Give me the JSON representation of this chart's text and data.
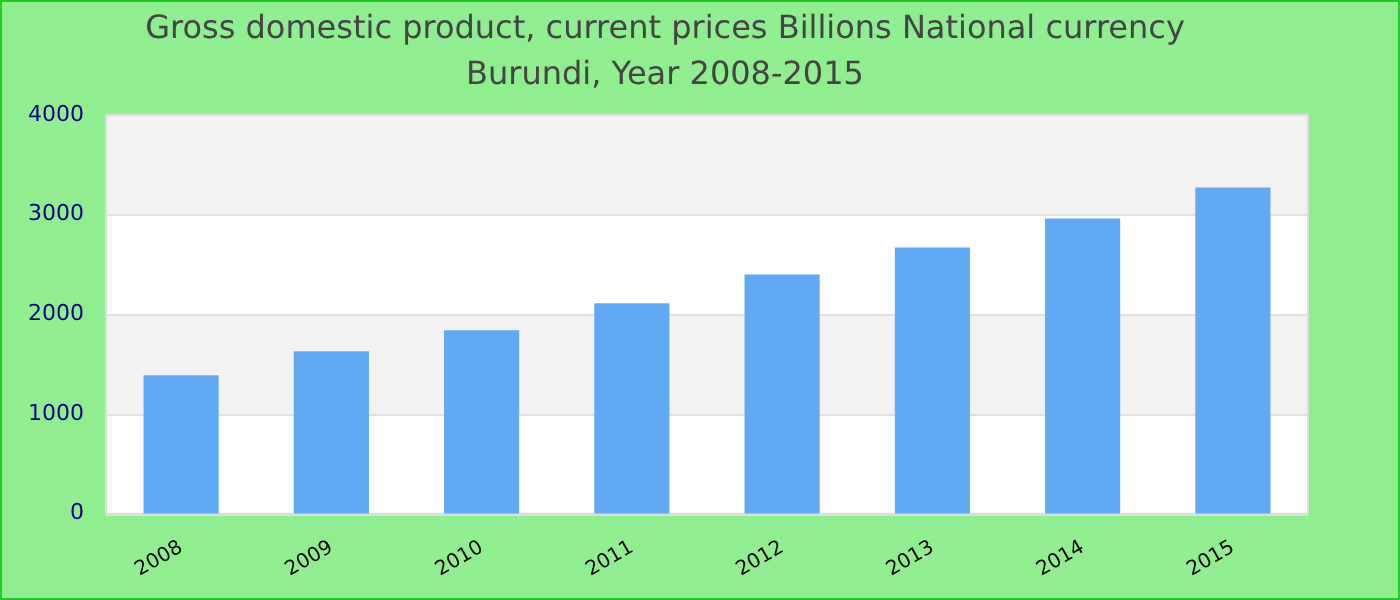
{
  "chart_data": {
    "type": "bar",
    "title": "Gross domestic product, current prices Billions National currency",
    "subtitle": "Burundi, Year 2008-2015",
    "categories": [
      "2008",
      "2009",
      "2010",
      "2011",
      "2012",
      "2013",
      "2014",
      "2015"
    ],
    "values": [
      1390,
      1630,
      1840,
      2110,
      2400,
      2670,
      2960,
      3270
    ],
    "color": "#61a8f5",
    "ylim": [
      0,
      4000
    ],
    "yticks": [
      0,
      1000,
      2000,
      3000,
      4000
    ],
    "grid": "y"
  }
}
